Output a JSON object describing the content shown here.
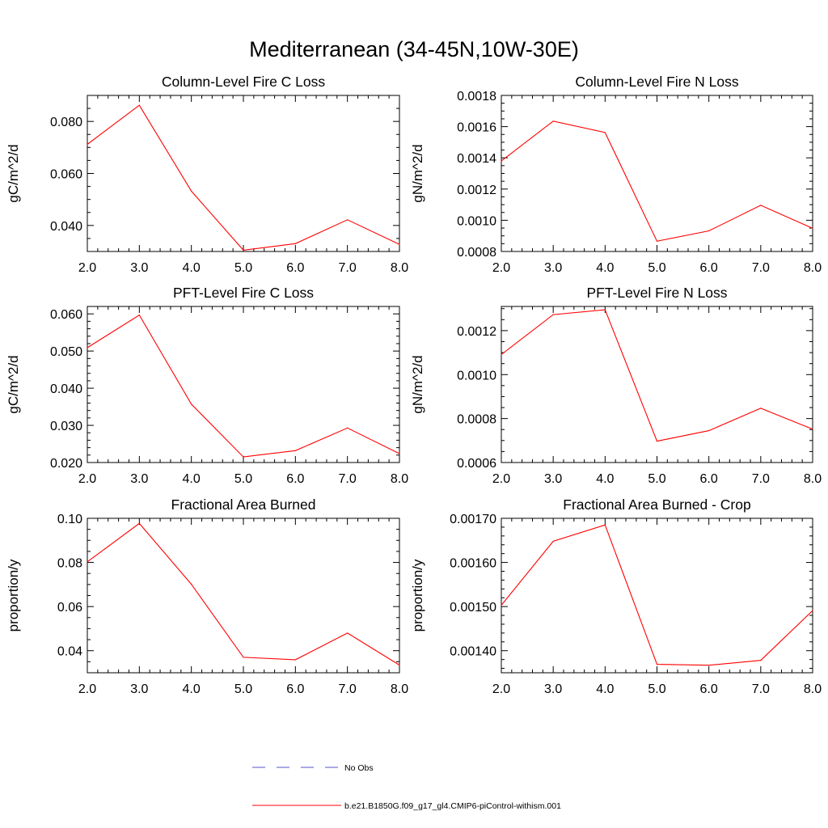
{
  "figure": {
    "title": "Mediterranean (34-45N,10W-30E)"
  },
  "legend": {
    "items": [
      {
        "label": "No Obs",
        "style": "dashed",
        "color": "#5555cc"
      },
      {
        "label": "b.e21.B1850G.f09_g17_gl4.CMIP6-piControl-withism.001",
        "style": "solid",
        "color": "#ff0000"
      }
    ]
  },
  "chart_data": [
    {
      "type": "line",
      "title": "Column-Level Fire C Loss",
      "xlabel": "",
      "ylabel": "gC/m^2/d",
      "x": [
        2,
        3,
        4,
        5,
        6,
        7,
        8
      ],
      "xlim": [
        2,
        8
      ],
      "xticks": [
        "2.0",
        "3.0",
        "4.0",
        "5.0",
        "6.0",
        "7.0",
        "8.0"
      ],
      "ylim": [
        0.03,
        0.09
      ],
      "yticks": [
        0.04,
        0.06,
        0.08
      ],
      "ytick_labels": [
        "0.040",
        "0.060",
        "0.080"
      ],
      "yminor_step": 0.005,
      "series": [
        {
          "name": "b.e21.B1850G.f09_g17_gl4.CMIP6-piControl-withism.001",
          "color": "#ff0000",
          "values": [
            0.0712,
            0.0862,
            0.0532,
            0.0305,
            0.033,
            0.0422,
            0.0327
          ]
        }
      ]
    },
    {
      "type": "line",
      "title": "Column-Level Fire N Loss",
      "xlabel": "",
      "ylabel": "gN/m^2/d",
      "x": [
        2,
        3,
        4,
        5,
        6,
        7,
        8
      ],
      "xlim": [
        2,
        8
      ],
      "xticks": [
        "2.0",
        "3.0",
        "4.0",
        "5.0",
        "6.0",
        "7.0",
        "8.0"
      ],
      "ylim": [
        0.0008,
        0.0018
      ],
      "yticks": [
        0.0008,
        0.001,
        0.0012,
        0.0014,
        0.0016,
        0.0018
      ],
      "ytick_labels": [
        "0.0008",
        "0.0010",
        "0.0012",
        "0.0014",
        "0.0016",
        "0.0018"
      ],
      "yminor_step": 5e-05,
      "series": [
        {
          "name": "b.e21.B1850G.f09_g17_gl4.CMIP6-piControl-withism.001",
          "color": "#ff0000",
          "values": [
            0.00138,
            0.001635,
            0.001562,
            0.000866,
            0.000932,
            0.001096,
            0.000948
          ]
        }
      ]
    },
    {
      "type": "line",
      "title": "PFT-Level Fire C Loss",
      "xlabel": "",
      "ylabel": "gC/m^2/d",
      "x": [
        2,
        3,
        4,
        5,
        6,
        7,
        8
      ],
      "xlim": [
        2,
        8
      ],
      "xticks": [
        "2.0",
        "3.0",
        "4.0",
        "5.0",
        "6.0",
        "7.0",
        "8.0"
      ],
      "ylim": [
        0.02,
        0.062
      ],
      "yticks": [
        0.02,
        0.03,
        0.04,
        0.05,
        0.06
      ],
      "ytick_labels": [
        "0.020",
        "0.030",
        "0.040",
        "0.050",
        "0.060"
      ],
      "yminor_step": 0.002,
      "series": [
        {
          "name": "b.e21.B1850G.f09_g17_gl4.CMIP6-piControl-withism.001",
          "color": "#ff0000",
          "values": [
            0.0509,
            0.0597,
            0.0357,
            0.0215,
            0.0232,
            0.0293,
            0.0224
          ]
        }
      ]
    },
    {
      "type": "line",
      "title": "PFT-Level Fire N Loss",
      "xlabel": "",
      "ylabel": "gN/m^2/d",
      "x": [
        2,
        3,
        4,
        5,
        6,
        7,
        8
      ],
      "xlim": [
        2,
        8
      ],
      "xticks": [
        "2.0",
        "3.0",
        "4.0",
        "5.0",
        "6.0",
        "7.0",
        "8.0"
      ],
      "ylim": [
        0.0006,
        0.00131
      ],
      "yticks": [
        0.0006,
        0.0008,
        0.001,
        0.0012
      ],
      "ytick_labels": [
        "0.0006",
        "0.0008",
        "0.0010",
        "0.0012"
      ],
      "yminor_step": 5e-05,
      "series": [
        {
          "name": "b.e21.B1850G.f09_g17_gl4.CMIP6-piControl-withism.001",
          "color": "#ff0000",
          "values": [
            0.001091,
            0.001273,
            0.001295,
            0.000697,
            0.000745,
            0.000847,
            0.000752
          ]
        }
      ]
    },
    {
      "type": "line",
      "title": "Fractional Area Burned",
      "xlabel": "",
      "ylabel": "proportion/y",
      "x": [
        2,
        3,
        4,
        5,
        6,
        7,
        8
      ],
      "xlim": [
        2,
        8
      ],
      "xticks": [
        "2.0",
        "3.0",
        "4.0",
        "5.0",
        "6.0",
        "7.0",
        "8.0"
      ],
      "ylim": [
        0.03,
        0.1
      ],
      "yticks": [
        0.04,
        0.06,
        0.08,
        0.1
      ],
      "ytick_labels": [
        "0.04",
        "0.06",
        "0.08",
        "0.10"
      ],
      "yminor_step": 0.005,
      "series": [
        {
          "name": "b.e21.B1850G.f09_g17_gl4.CMIP6-piControl-withism.001",
          "color": "#ff0000",
          "values": [
            0.0803,
            0.0977,
            0.0701,
            0.037,
            0.0359,
            0.048,
            0.0335
          ]
        }
      ]
    },
    {
      "type": "line",
      "title": "Fractional Area Burned - Crop",
      "xlabel": "",
      "ylabel": "proportion/y",
      "x": [
        2,
        3,
        4,
        5,
        6,
        7,
        8
      ],
      "xlim": [
        2,
        8
      ],
      "xticks": [
        "2.0",
        "3.0",
        "4.0",
        "5.0",
        "6.0",
        "7.0",
        "8.0"
      ],
      "ylim": [
        0.00135,
        0.0017
      ],
      "yticks": [
        0.0014,
        0.0015,
        0.0016,
        0.0017
      ],
      "ytick_labels": [
        "0.00140",
        "0.00150",
        "0.00160",
        "0.00170"
      ],
      "yminor_step": 2e-05,
      "series": [
        {
          "name": "b.e21.B1850G.f09_g17_gl4.CMIP6-piControl-withism.001",
          "color": "#ff0000",
          "values": [
            0.001503,
            0.001648,
            0.001685,
            0.001369,
            0.001367,
            0.001378,
            0.001491
          ]
        }
      ]
    }
  ]
}
